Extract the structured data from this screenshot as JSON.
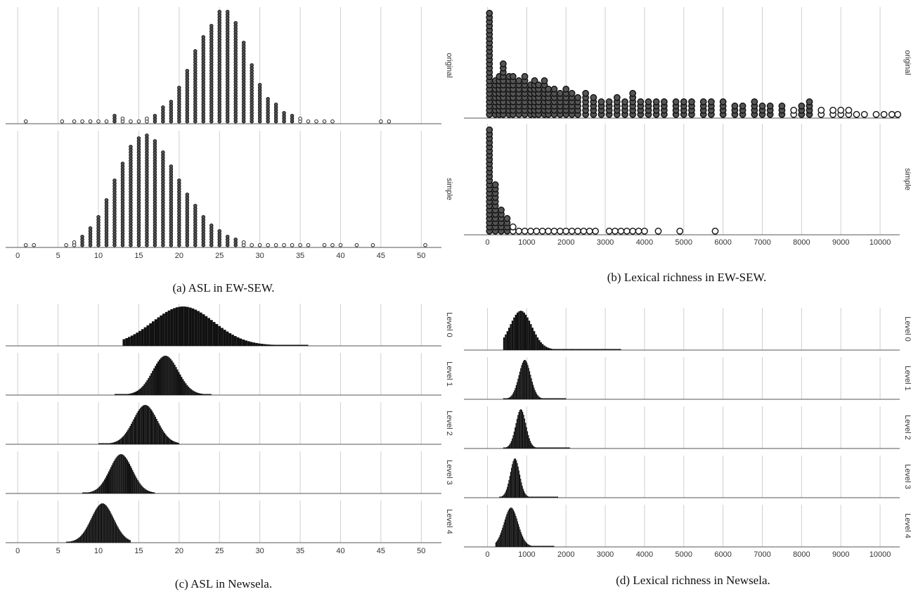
{
  "chart_data": [
    {
      "id": "a",
      "type": "scatter",
      "caption": "(a) ASL in EW-SEW.",
      "x_ticks": [
        0,
        5,
        10,
        15,
        20,
        25,
        30,
        35,
        40,
        45,
        50
      ],
      "xlim": [
        -1.5,
        52.5
      ],
      "facets": [
        {
          "label": "original",
          "series": {
            "x": [
              1,
              5.5,
              7,
              8,
              9,
              10,
              11,
              12,
              13,
              14,
              15,
              16,
              17,
              18,
              19,
              20,
              21,
              22,
              23,
              24,
              25,
              26,
              27,
              28,
              29,
              30,
              31,
              32,
              33,
              34,
              35,
              36,
              37,
              38,
              39,
              45,
              46
            ],
            "y": [
              1,
              2,
              2,
              3,
              3,
              4,
              6,
              12,
              10,
              6,
              5,
              10,
              12,
              25,
              35,
              55,
              80,
              110,
              130,
              150,
              170,
              170,
              155,
              125,
              90,
              60,
              40,
              28,
              18,
              12,
              8,
              4,
              4,
              2,
              2,
              1,
              1
            ]
          }
        },
        {
          "label": "simple",
          "series": {
            "x": [
              1,
              2,
              6,
              7,
              8,
              9,
              10,
              11,
              12,
              13,
              14,
              15,
              16,
              17,
              18,
              19,
              20,
              21,
              22,
              23,
              24,
              25,
              26,
              27,
              28,
              29,
              30,
              31,
              32,
              33,
              34,
              35,
              36,
              38,
              39,
              40,
              42,
              44,
              50.5
            ],
            "y": [
              1,
              1,
              3,
              8,
              15,
              28,
              45,
              68,
              95,
              120,
              145,
              155,
              160,
              150,
              135,
              115,
              95,
              75,
              58,
              44,
              32,
              22,
              15,
              10,
              7,
              5,
              3,
              2,
              2,
              1,
              1,
              1,
              1,
              1,
              1,
              1,
              1,
              1,
              1
            ]
          }
        }
      ]
    },
    {
      "id": "b",
      "type": "scatter",
      "caption": "(b) Lexical richness in EW-SEW.",
      "x_ticks": [
        0,
        1000,
        2000,
        3000,
        4000,
        5000,
        6000,
        7000,
        8000,
        9000,
        10000
      ],
      "xlim": [
        -600,
        10500
      ],
      "facets": [
        {
          "label": "original",
          "series": {
            "x": [
              50,
              200,
              300,
              400,
              550,
              650,
              800,
              950,
              1100,
              1200,
              1300,
              1450,
              1550,
              1700,
              1850,
              2000,
              2150,
              2300,
              2500,
              2700,
              2900,
              3100,
              3300,
              3500,
              3700,
              3900,
              4100,
              4300,
              4500,
              4800,
              5000,
              5200,
              5500,
              5700,
              6000,
              6300,
              6500,
              6800,
              7000,
              7200,
              7500,
              7800,
              8000,
              8200,
              8500,
              8800,
              9000,
              9200,
              9400,
              9600,
              9900,
              10100,
              10300,
              10450
            ],
            "y": [
              170,
              60,
              70,
              85,
              65,
              70,
              60,
              65,
              55,
              60,
              55,
              60,
              50,
              45,
              40,
              45,
              40,
              35,
              40,
              35,
              30,
              30,
              35,
              30,
              40,
              30,
              30,
              30,
              25,
              25,
              25,
              25,
              25,
              25,
              25,
              20,
              20,
              25,
              20,
              20,
              20,
              15,
              20,
              25,
              15,
              15,
              15,
              12,
              10,
              10,
              10,
              8,
              8,
              6
            ]
          }
        },
        {
          "label": "simple",
          "series": {
            "x": [
              50,
              200,
              350,
              500,
              650,
              800,
              950,
              1100,
              1250,
              1400,
              1550,
              1700,
              1850,
              2000,
              2150,
              2300,
              2450,
              2600,
              2750,
              3100,
              3250,
              3400,
              3550,
              3700,
              3850,
              4000,
              4350,
              4900,
              5800
            ],
            "y": [
              170,
              80,
              40,
              25,
              15,
              10,
              8,
              6,
              5,
              4,
              3,
              3,
              2,
              2,
              2,
              1,
              1,
              1,
              1,
              1,
              1,
              1,
              1,
              1,
              1,
              1,
              1,
              1,
              1
            ]
          }
        }
      ]
    },
    {
      "id": "c",
      "type": "scatter",
      "caption": "(c) ASL in Newsela.",
      "x_ticks": [
        0,
        5,
        10,
        15,
        20,
        25,
        30,
        35,
        40,
        45,
        50
      ],
      "xlim": [
        -1.5,
        52.5
      ],
      "facets": [
        {
          "label": "Level 0",
          "range": [
            13,
            36
          ],
          "peak": 20.5,
          "spread": 3.8
        },
        {
          "label": "Level 1",
          "range": [
            12,
            24
          ],
          "peak": 18.3,
          "spread": 1.6
        },
        {
          "label": "Level 2",
          "range": [
            10,
            20
          ],
          "peak": 15.8,
          "spread": 1.5
        },
        {
          "label": "Level 3",
          "range": [
            8,
            17
          ],
          "peak": 12.8,
          "spread": 1.4
        },
        {
          "label": "Level 4",
          "range": [
            6,
            14
          ],
          "peak": 10.5,
          "spread": 1.4
        }
      ]
    },
    {
      "id": "d",
      "type": "scatter",
      "caption": "(d) Lexical richness in Newsela.",
      "x_ticks": [
        0,
        1000,
        2000,
        3000,
        4000,
        5000,
        6000,
        7000,
        8000,
        9000,
        10000
      ],
      "xlim": [
        -600,
        10500
      ],
      "facets": [
        {
          "label": "Level 0",
          "range": [
            400,
            3400
          ],
          "peak": 850,
          "spread": 280
        },
        {
          "label": "Level 1",
          "range": [
            400,
            2000
          ],
          "peak": 950,
          "spread": 150
        },
        {
          "label": "Level 2",
          "range": [
            400,
            2100
          ],
          "peak": 850,
          "spread": 130
        },
        {
          "label": "Level 3",
          "range": [
            300,
            1800
          ],
          "peak": 700,
          "spread": 120
        },
        {
          "label": "Level 4",
          "range": [
            200,
            1700
          ],
          "peak": 600,
          "spread": 180
        }
      ]
    }
  ]
}
